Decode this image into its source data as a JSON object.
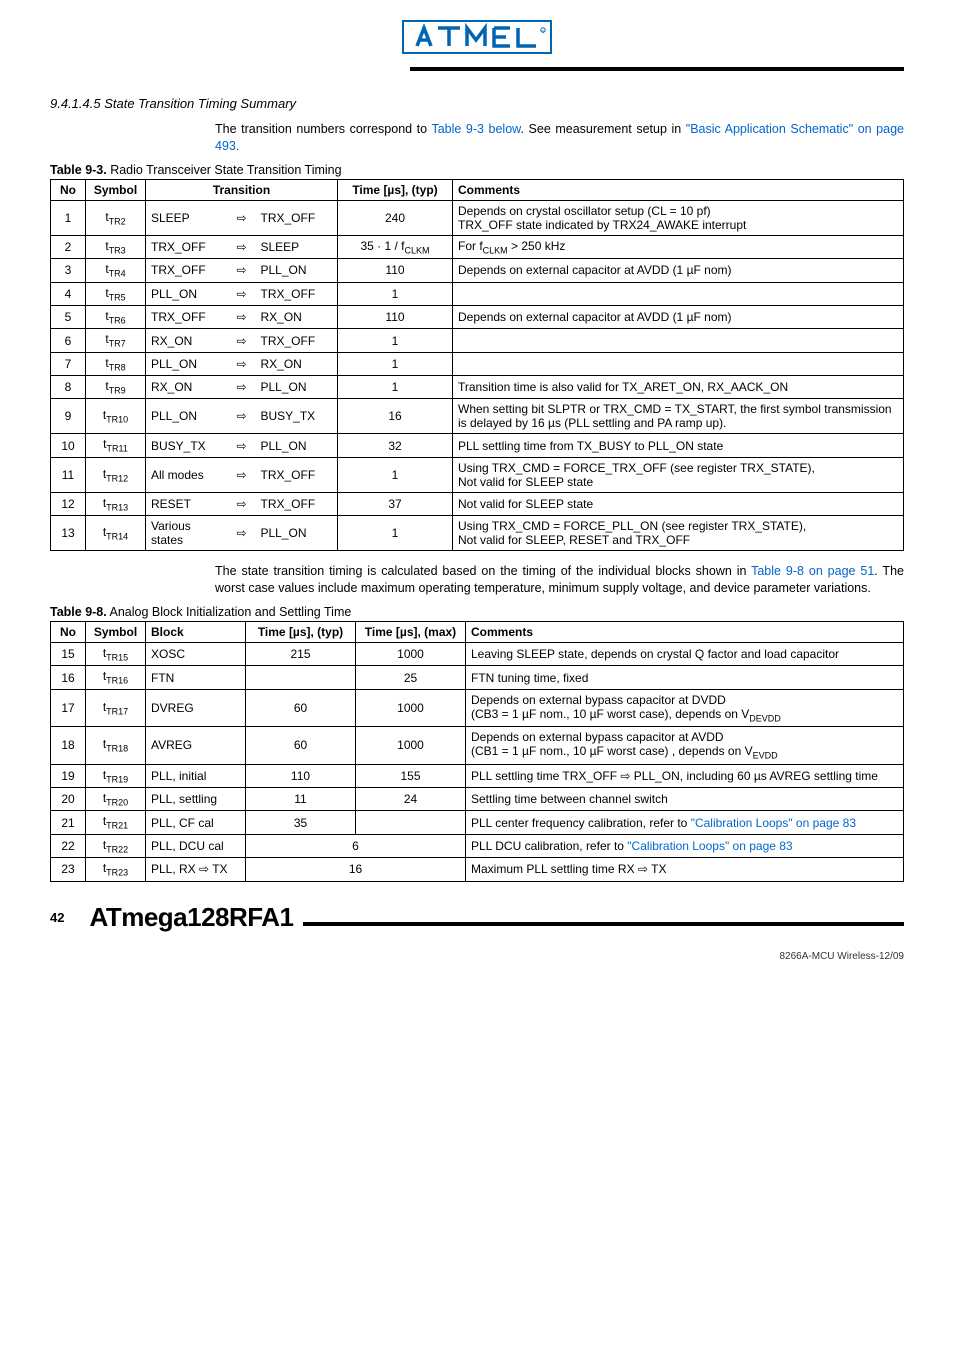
{
  "logo_colors": {
    "box": "#0066b3",
    "text": "#0066b3"
  },
  "section_heading": "9.4.1.4.5 State Transition Timing Summary",
  "intro_text": "The transition numbers correspond to ",
  "intro_link1": "Table 9-3 below",
  "intro_text2": ". See measurement setup in ",
  "intro_link2": "\"Basic Application Schematic\" on page 493.",
  "table93": {
    "caption_bold": "Table 9-3.",
    "caption_rest": " Radio Transceiver State Transition Timing",
    "headers": [
      "No",
      "Symbol",
      "Transition",
      "Time [µs], (typ)",
      "Comments"
    ],
    "rows": [
      {
        "no": "1",
        "sym": "t",
        "sub": "TR2",
        "from": "SLEEP",
        "arr": "⇨",
        "to": "TRX_OFF",
        "time": "240",
        "comment": "Depends on crystal oscillator setup (CL = 10 pf)\nTRX_OFF state indicated by TRX24_AWAKE interrupt"
      },
      {
        "no": "2",
        "sym": "t",
        "sub": "TR3",
        "from": "TRX_OFF",
        "arr": "⇨",
        "to": "SLEEP",
        "time": "35 · 1 / f",
        "time_sub": "CLKM",
        "comment": "For f",
        "comment_sub": "CLKM",
        "comment_rest": " > 250 kHz"
      },
      {
        "no": "3",
        "sym": "t",
        "sub": "TR4",
        "from": "TRX_OFF",
        "arr": "⇨",
        "to": "PLL_ON",
        "time": "110",
        "comment": "Depends on external capacitor at AVDD (1 µF nom)"
      },
      {
        "no": "4",
        "sym": "t",
        "sub": "TR5",
        "from": "PLL_ON",
        "arr": "⇨",
        "to": "TRX_OFF",
        "time": "1",
        "comment": ""
      },
      {
        "no": "5",
        "sym": "t",
        "sub": "TR6",
        "from": "TRX_OFF",
        "arr": "⇨",
        "to": "RX_ON",
        "time": "110",
        "comment": "Depends on external capacitor at AVDD (1 µF nom)"
      },
      {
        "no": "6",
        "sym": "t",
        "sub": "TR7",
        "from": "RX_ON",
        "arr": "⇨",
        "to": "TRX_OFF",
        "time": "1",
        "comment": ""
      },
      {
        "no": "7",
        "sym": "t",
        "sub": "TR8",
        "from": "PLL_ON",
        "arr": "⇨",
        "to": "RX_ON",
        "time": "1",
        "comment": ""
      },
      {
        "no": "8",
        "sym": "t",
        "sub": "TR9",
        "from": "RX_ON",
        "arr": "⇨",
        "to": "PLL_ON",
        "time": "1",
        "comment": "Transition time is also valid for TX_ARET_ON, RX_AACK_ON"
      },
      {
        "no": "9",
        "sym": "t",
        "sub": "TR10",
        "from": "PLL_ON",
        "arr": "⇨",
        "to": "BUSY_TX",
        "time": "16",
        "comment": "When setting bit SLPTR or TRX_CMD = TX_START, the first symbol transmission is delayed by 16 µs (PLL settling and PA ramp up)."
      },
      {
        "no": "10",
        "sym": "t",
        "sub": "TR11",
        "from": "BUSY_TX",
        "arr": "⇨",
        "to": "PLL_ON",
        "time": "32",
        "comment": "PLL settling time from TX_BUSY to PLL_ON state"
      },
      {
        "no": "11",
        "sym": "t",
        "sub": "TR12",
        "from": "All modes",
        "arr": "⇨",
        "to": "TRX_OFF",
        "time": "1",
        "comment": "Using TRX_CMD = FORCE_TRX_OFF (see register TRX_STATE),\nNot valid for SLEEP state"
      },
      {
        "no": "12",
        "sym": "t",
        "sub": "TR13",
        "from": "RESET",
        "arr": "⇨",
        "to": "TRX_OFF",
        "time": "37",
        "comment": "Not valid for SLEEP state"
      },
      {
        "no": "13",
        "sym": "t",
        "sub": "TR14",
        "from": "Various states",
        "arr": "⇨",
        "to": "PLL_ON",
        "time": "1",
        "comment": "Using TRX_CMD = FORCE_PLL_ON (see register TRX_STATE),\nNot valid for SLEEP, RESET and TRX_OFF"
      }
    ]
  },
  "mid_text1": "The state transition timing is calculated based on the timing of the individual blocks shown in ",
  "mid_link": "Table 9-8 on page 51",
  "mid_text2": ". The worst case values include maximum operating temperature, minimum supply voltage, and device parameter variations.",
  "table98": {
    "caption_bold": "Table 9-8.",
    "caption_rest": " Analog Block Initialization and Settling Time",
    "headers": [
      "No",
      "Symbol",
      "Block",
      "Time [µs], (typ)",
      "Time [µs], (max)",
      "Comments"
    ],
    "rows": [
      {
        "no": "15",
        "sym": "t",
        "sub": "TR15",
        "block": "XOSC",
        "typ": "215",
        "max": "1000",
        "comment": "Leaving SLEEP state, depends on crystal Q factor and load capacitor"
      },
      {
        "no": "16",
        "sym": "t",
        "sub": "TR16",
        "block": "FTN",
        "typ": "",
        "max": "25",
        "comment": "FTN tuning time, fixed"
      },
      {
        "no": "17",
        "sym": "t",
        "sub": "TR17",
        "block": "DVREG",
        "typ": "60",
        "max": "1000",
        "comment": "Depends on external bypass capacitor at DVDD\n(CB3 = 1 µF nom., 10 µF worst case), depends on V",
        "comment_sub": "DEVDD"
      },
      {
        "no": "18",
        "sym": "t",
        "sub": "TR18",
        "block": "AVREG",
        "typ": "60",
        "max": "1000",
        "comment": "Depends on external bypass capacitor at AVDD\n(CB1 = 1 µF nom., 10 µF worst case) , depends on V",
        "comment_sub": "EVDD"
      },
      {
        "no": "19",
        "sym": "t",
        "sub": "TR19",
        "block": "PLL, initial",
        "typ": "110",
        "max": "155",
        "comment": "PLL settling time TRX_OFF ⇨ PLL_ON, including 60 µs AVREG settling time"
      },
      {
        "no": "20",
        "sym": "t",
        "sub": "TR20",
        "block": "PLL, settling",
        "typ": "11",
        "max": "24",
        "comment": "Settling time between channel switch"
      },
      {
        "no": "21",
        "sym": "t",
        "sub": "TR21",
        "block": "PLL, CF cal",
        "typ": "35",
        "max": "",
        "comment": "PLL center frequency calibration, refer to ",
        "link": "\"Calibration Loops\" on page 83"
      },
      {
        "no": "22",
        "sym": "t",
        "sub": "TR22",
        "block": "PLL, DCU cal",
        "merged": "6",
        "comment": "PLL DCU calibration, refer to ",
        "link": "\"Calibration Loops\" on page 83"
      },
      {
        "no": "23",
        "sym": "t",
        "sub": "TR23",
        "block": "PLL, RX ⇨ TX",
        "merged": "16",
        "comment": "Maximum PLL settling time RX ⇨ TX"
      }
    ]
  },
  "footer": {
    "page": "42",
    "product": "ATmega128RFA1",
    "doc_id": "8266A-MCU Wireless-12/09"
  }
}
